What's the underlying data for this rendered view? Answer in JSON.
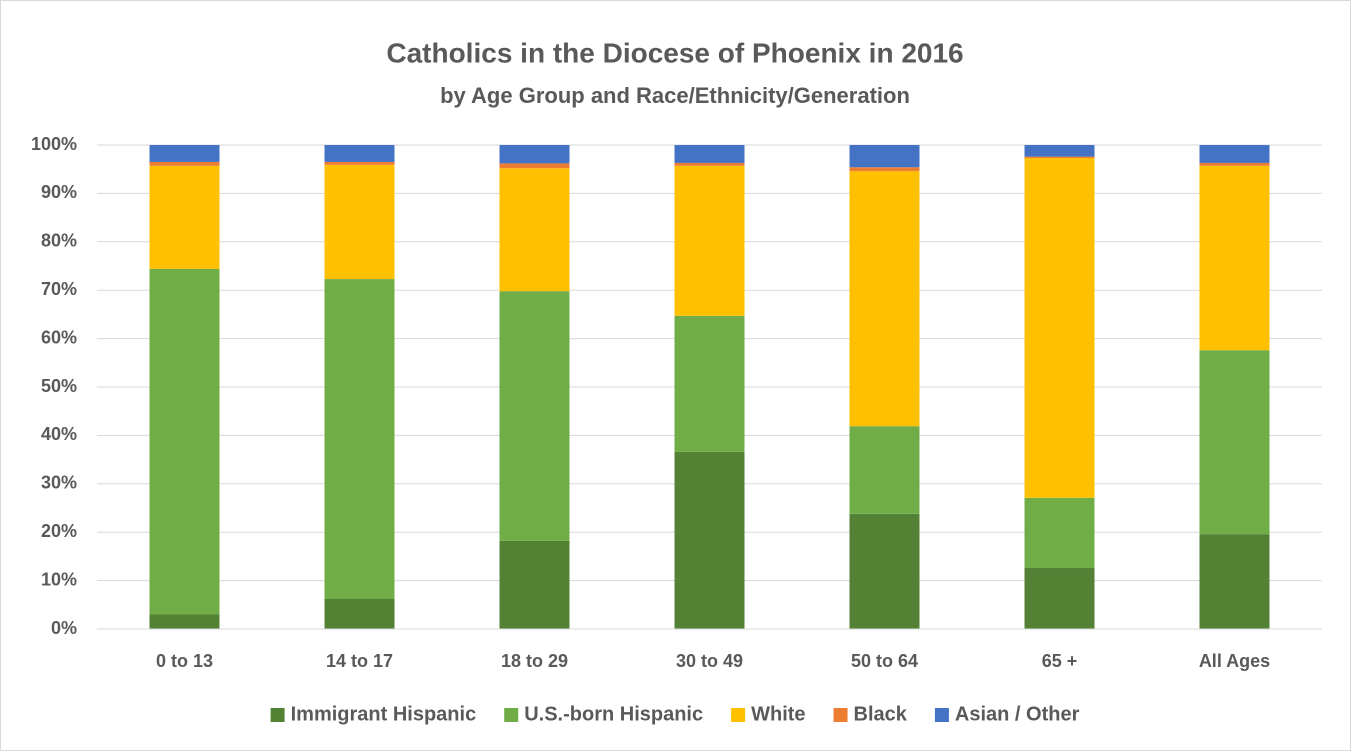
{
  "chart_data": {
    "type": "stacked_bar",
    "title": "Catholics in the Diocese of Phoenix in 2016",
    "subtitle": "by Age Group and Race/Ethnicity/Generation",
    "categories": [
      "0 to 13",
      "14 to 17",
      "18 to 29",
      "30 to 49",
      "50 to 64",
      "65 +",
      "All Ages"
    ],
    "series": [
      {
        "name": "Immigrant Hispanic",
        "color": "#548235",
        "values": [
          3.0,
          6.2,
          18.2,
          36.6,
          23.8,
          12.6,
          19.6
        ]
      },
      {
        "name": "U.S.-born Hispanic",
        "color": "#70ad47",
        "values": [
          71.4,
          66.1,
          51.6,
          28.1,
          18.1,
          14.5,
          38.0
        ]
      },
      {
        "name": "White",
        "color": "#ffc000",
        "values": [
          21.3,
          23.6,
          25.4,
          31.0,
          52.7,
          70.2,
          38.1
        ]
      },
      {
        "name": "Black",
        "color": "#ed7d31",
        "values": [
          0.8,
          0.6,
          1.0,
          0.6,
          0.8,
          0.3,
          0.6
        ]
      },
      {
        "name": "Asian / Other",
        "color": "#4472c4",
        "values": [
          3.5,
          3.5,
          3.8,
          3.7,
          4.6,
          2.4,
          3.7
        ]
      }
    ],
    "ylim": [
      0,
      100
    ],
    "yticks": [
      {
        "value": 0,
        "label": "0%"
      },
      {
        "value": 10,
        "label": "10%"
      },
      {
        "value": 20,
        "label": "20%"
      },
      {
        "value": 30,
        "label": "30%"
      },
      {
        "value": 40,
        "label": "40%"
      },
      {
        "value": 50,
        "label": "50%"
      },
      {
        "value": 60,
        "label": "60%"
      },
      {
        "value": 70,
        "label": "70%"
      },
      {
        "value": 80,
        "label": "80%"
      },
      {
        "value": 90,
        "label": "90%"
      },
      {
        "value": 100,
        "label": "100%"
      }
    ],
    "grid": true,
    "legend": "bottom"
  }
}
